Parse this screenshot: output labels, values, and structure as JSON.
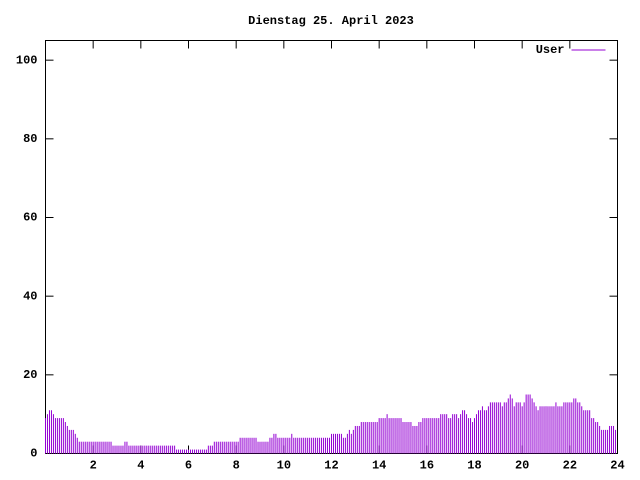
{
  "chart_data": {
    "type": "impulses",
    "title": "Dienstag 25. April 2023",
    "x": [
      0,
      0.083,
      0.167,
      0.25,
      0.333,
      0.417,
      0.5,
      0.583,
      0.667,
      0.75,
      0.833,
      0.917,
      1,
      1.083,
      1.167,
      1.25,
      1.333,
      1.417,
      1.5,
      1.583,
      1.667,
      1.75,
      1.833,
      1.917,
      2,
      2.083,
      2.167,
      2.25,
      2.333,
      2.417,
      2.5,
      2.583,
      2.667,
      2.75,
      2.833,
      2.917,
      3,
      3.083,
      3.167,
      3.25,
      3.333,
      3.417,
      3.5,
      3.583,
      3.667,
      3.75,
      3.833,
      3.917,
      4,
      4.083,
      4.167,
      4.25,
      4.333,
      4.417,
      4.5,
      4.583,
      4.667,
      4.75,
      4.833,
      4.917,
      5,
      5.083,
      5.167,
      5.25,
      5.333,
      5.417,
      5.5,
      5.583,
      5.667,
      5.75,
      5.833,
      5.917,
      6,
      6.083,
      6.167,
      6.25,
      6.333,
      6.417,
      6.5,
      6.583,
      6.667,
      6.75,
      6.833,
      6.917,
      7,
      7.083,
      7.167,
      7.25,
      7.333,
      7.417,
      7.5,
      7.583,
      7.667,
      7.75,
      7.833,
      7.917,
      8,
      8.083,
      8.167,
      8.25,
      8.333,
      8.417,
      8.5,
      8.583,
      8.667,
      8.75,
      8.833,
      8.917,
      9,
      9.083,
      9.167,
      9.25,
      9.333,
      9.417,
      9.5,
      9.583,
      9.667,
      9.75,
      9.833,
      9.917,
      10,
      10.083,
      10.167,
      10.25,
      10.333,
      10.417,
      10.5,
      10.583,
      10.667,
      10.75,
      10.833,
      10.917,
      11,
      11.083,
      11.167,
      11.25,
      11.333,
      11.417,
      11.5,
      11.583,
      11.667,
      11.75,
      11.833,
      11.917,
      12,
      12.083,
      12.167,
      12.25,
      12.333,
      12.417,
      12.5,
      12.583,
      12.667,
      12.75,
      12.833,
      12.917,
      13,
      13.083,
      13.167,
      13.25,
      13.333,
      13.417,
      13.5,
      13.583,
      13.667,
      13.75,
      13.833,
      13.917,
      14,
      14.083,
      14.167,
      14.25,
      14.333,
      14.417,
      14.5,
      14.583,
      14.667,
      14.75,
      14.833,
      14.917,
      15,
      15.083,
      15.167,
      15.25,
      15.333,
      15.417,
      15.5,
      15.583,
      15.667,
      15.75,
      15.833,
      15.917,
      16,
      16.083,
      16.167,
      16.25,
      16.333,
      16.417,
      16.5,
      16.583,
      16.667,
      16.75,
      16.833,
      16.917,
      17,
      17.083,
      17.167,
      17.25,
      17.333,
      17.417,
      17.5,
      17.583,
      17.667,
      17.75,
      17.833,
      17.917,
      18,
      18.083,
      18.167,
      18.25,
      18.333,
      18.417,
      18.5,
      18.583,
      18.667,
      18.75,
      18.833,
      18.917,
      19,
      19.083,
      19.167,
      19.25,
      19.333,
      19.417,
      19.5,
      19.583,
      19.667,
      19.75,
      19.833,
      19.917,
      20,
      20.083,
      20.167,
      20.25,
      20.333,
      20.417,
      20.5,
      20.583,
      20.667,
      20.75,
      20.833,
      20.917,
      21,
      21.083,
      21.167,
      21.25,
      21.333,
      21.417,
      21.5,
      21.583,
      21.667,
      21.75,
      21.833,
      21.917,
      22,
      22.083,
      22.167,
      22.25,
      22.333,
      22.417,
      22.5,
      22.583,
      22.667,
      22.75,
      22.833,
      22.917,
      23,
      23.083,
      23.167,
      23.25,
      23.333,
      23.417,
      23.5,
      23.583,
      23.667,
      23.75,
      23.833,
      23.917
    ],
    "series": [
      {
        "name": "User",
        "color": "#9400d3",
        "values": [
          9,
          10,
          11,
          11,
          10,
          9,
          9,
          9,
          9,
          9,
          8,
          7,
          6,
          6,
          6,
          5,
          4,
          3,
          3,
          3,
          3,
          3,
          3,
          3,
          3,
          3,
          3,
          3,
          3,
          3,
          3,
          3,
          3,
          3,
          2,
          2,
          2,
          2,
          2,
          2,
          3,
          3,
          2,
          2,
          2,
          2,
          2,
          2,
          2,
          2,
          2,
          2,
          2,
          2,
          2,
          2,
          2,
          2,
          2,
          2,
          2,
          2,
          2,
          2,
          2,
          2,
          1,
          1,
          1,
          1,
          1,
          1,
          1,
          1,
          1,
          1,
          1,
          1,
          1,
          1,
          1,
          1,
          2,
          2,
          2,
          3,
          3,
          3,
          3,
          3,
          3,
          3,
          3,
          3,
          3,
          3,
          3,
          3,
          4,
          4,
          4,
          4,
          4,
          4,
          4,
          4,
          4,
          3,
          3,
          3,
          3,
          3,
          3,
          4,
          4,
          5,
          5,
          4,
          4,
          4,
          4,
          4,
          4,
          4,
          5,
          4,
          4,
          4,
          4,
          4,
          4,
          4,
          4,
          4,
          4,
          4,
          4,
          4,
          4,
          4,
          4,
          4,
          4,
          4,
          5,
          5,
          5,
          5,
          5,
          5,
          4,
          4,
          5,
          6,
          5,
          6,
          7,
          7,
          7,
          8,
          8,
          8,
          8,
          8,
          8,
          8,
          8,
          8,
          9,
          9,
          9,
          9,
          10,
          9,
          9,
          9,
          9,
          9,
          9,
          9,
          8,
          8,
          8,
          8,
          8,
          7,
          7,
          7,
          8,
          8,
          9,
          9,
          9,
          9,
          9,
          9,
          9,
          9,
          9,
          10,
          10,
          10,
          10,
          9,
          9,
          10,
          10,
          10,
          9,
          10,
          11,
          11,
          10,
          9,
          9,
          8,
          9,
          10,
          11,
          11,
          12,
          11,
          11,
          12,
          13,
          13,
          13,
          13,
          13,
          13,
          12,
          13,
          13,
          14,
          15,
          14,
          12,
          13,
          13,
          13,
          12,
          13,
          15,
          15,
          15,
          14,
          13,
          12,
          11,
          12,
          12,
          12,
          12,
          12,
          12,
          12,
          12,
          13,
          12,
          12,
          12,
          13,
          13,
          13,
          13,
          13,
          14,
          14,
          13,
          13,
          12,
          11,
          11,
          11,
          11,
          9,
          9,
          8,
          8,
          7,
          6,
          6,
          6,
          6,
          7,
          7,
          7,
          6
        ]
      }
    ],
    "xlim": [
      0,
      24
    ],
    "xticks": [
      2,
      4,
      6,
      8,
      10,
      12,
      14,
      16,
      18,
      20,
      22,
      24
    ],
    "ylim": [
      0,
      105
    ],
    "yticks": [
      0,
      20,
      40,
      60,
      80,
      100
    ],
    "legend": "top-right"
  }
}
